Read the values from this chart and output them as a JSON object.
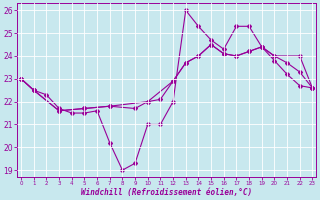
{
  "xlabel": "Windchill (Refroidissement éolien,°C)",
  "xlim": [
    -0.3,
    23.3
  ],
  "ylim": [
    18.7,
    26.3
  ],
  "yticks": [
    19,
    20,
    21,
    22,
    23,
    24,
    25,
    26
  ],
  "xticks": [
    0,
    1,
    2,
    3,
    4,
    5,
    6,
    7,
    8,
    9,
    10,
    11,
    12,
    13,
    14,
    15,
    16,
    17,
    18,
    19,
    20,
    21,
    22,
    23
  ],
  "line_color": "#990099",
  "bg_color": "#c8e8ee",
  "grid_color": "#aadddd",
  "line1_x": [
    0,
    1,
    2,
    3,
    4,
    5,
    6,
    7,
    8,
    9,
    10,
    11,
    12,
    13,
    14,
    15,
    16,
    17,
    18,
    19,
    20,
    21,
    22,
    23
  ],
  "line1_y": [
    23.0,
    22.5,
    22.3,
    21.7,
    21.5,
    21.5,
    21.6,
    20.2,
    19.0,
    19.3,
    21.0,
    21.0,
    22.0,
    26.0,
    25.3,
    24.7,
    24.3,
    25.3,
    25.3,
    24.4,
    23.8,
    23.2,
    22.7,
    22.6
  ],
  "line2_x": [
    0,
    1,
    3,
    5,
    7,
    9,
    10,
    11,
    12,
    13,
    14,
    15,
    16,
    17,
    18,
    19,
    20,
    22,
    23
  ],
  "line2_y": [
    23.0,
    22.5,
    21.6,
    21.7,
    21.8,
    21.7,
    22.0,
    22.1,
    22.9,
    23.7,
    24.0,
    24.5,
    24.1,
    24.0,
    24.2,
    24.4,
    24.0,
    24.0,
    22.6
  ],
  "line3_x": [
    0,
    1,
    3,
    5,
    7,
    10,
    12,
    13,
    14,
    15,
    16,
    17,
    18,
    19,
    20,
    21,
    22,
    23
  ],
  "line3_y": [
    23.0,
    22.5,
    21.6,
    21.7,
    21.8,
    22.0,
    22.9,
    23.7,
    24.0,
    24.5,
    24.1,
    24.0,
    24.2,
    24.4,
    24.0,
    23.7,
    23.3,
    22.6
  ]
}
